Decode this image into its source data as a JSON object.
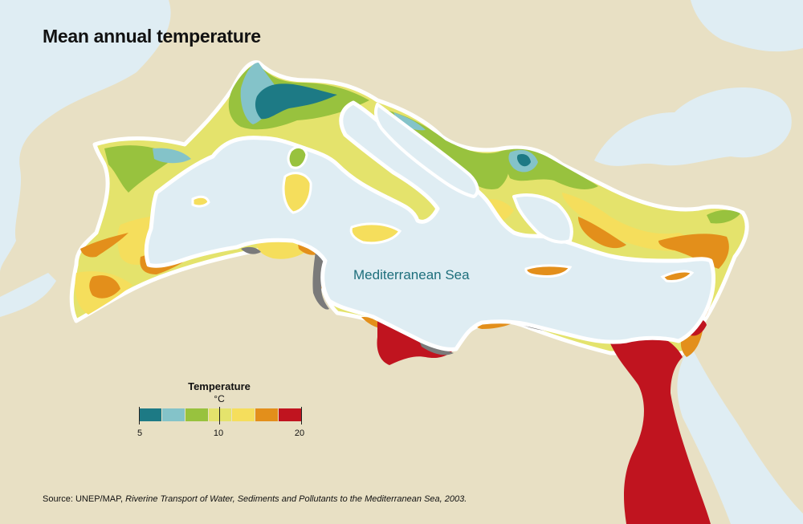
{
  "title": "Mean annual temperature",
  "sea_label": "Mediterranean Sea",
  "legend": {
    "title": "Temperature",
    "unit": "°C",
    "classes": [
      {
        "color": "#1d7a85"
      },
      {
        "color": "#84c3c9"
      },
      {
        "color": "#98c23e"
      },
      {
        "color": "#e4e36c"
      },
      {
        "color": "#f5de5c"
      },
      {
        "color": "#e38f1b"
      },
      {
        "color": "#c0141f"
      }
    ],
    "tick_labels": [
      "5",
      "10",
      "20"
    ]
  },
  "source": {
    "prefix": "Source: UNEP/MAP, ",
    "italic": "Riverine Transport of  Water, Sediments and Pollutants to the Mediterranean Sea, 2003."
  },
  "colors": {
    "land": "#e8e0c4",
    "water": "#dfedf3",
    "coast_outline": "#ffffff",
    "no_data": "#7a7a7a"
  }
}
